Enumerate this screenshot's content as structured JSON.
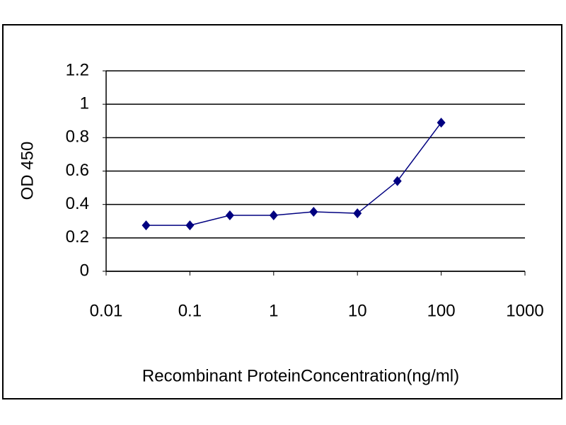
{
  "chart_data": {
    "type": "line",
    "x_label": "Recombinant ProteinConcentration(ng/ml)",
    "y_label": "OD 450",
    "x": [
      0.03,
      0.1,
      0.3,
      1,
      3,
      10,
      30,
      100
    ],
    "series": [
      {
        "name": "OD 450",
        "color": "#000080",
        "values": [
          0.275,
          0.275,
          0.335,
          0.335,
          0.356,
          0.347,
          0.54,
          0.89
        ]
      }
    ],
    "xlim": [
      0.01,
      1000
    ],
    "xticks": [
      0.01,
      0.1,
      1,
      10,
      100,
      1000
    ],
    "xlog": true,
    "ylim": [
      0,
      1.2
    ],
    "yticks": [
      0,
      0.2,
      0.4,
      0.6,
      0.8,
      1,
      1.2
    ],
    "grid": true
  }
}
